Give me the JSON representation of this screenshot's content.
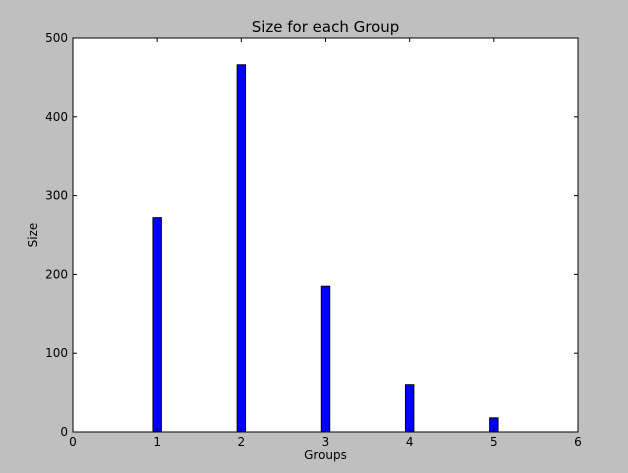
{
  "chart_data": {
    "type": "bar",
    "title": "Size for each Group",
    "xlabel": "Groups",
    "ylabel": "Size",
    "x": [
      1,
      2,
      3,
      4,
      5
    ],
    "values": [
      272,
      466,
      185,
      60,
      18
    ],
    "xlim": [
      0,
      6
    ],
    "ylim": [
      0,
      500
    ],
    "xticks": [
      0,
      1,
      2,
      3,
      4,
      5,
      6
    ],
    "yticks": [
      0,
      100,
      200,
      300,
      400,
      500
    ],
    "bar_width": 0.1,
    "grid": false,
    "legend": "none"
  },
  "colors": {
    "figure_background": "#bfbfbf",
    "plot_background": "#ffffff",
    "bar_fill": "#0000ff",
    "bar_edge": "#000000"
  }
}
